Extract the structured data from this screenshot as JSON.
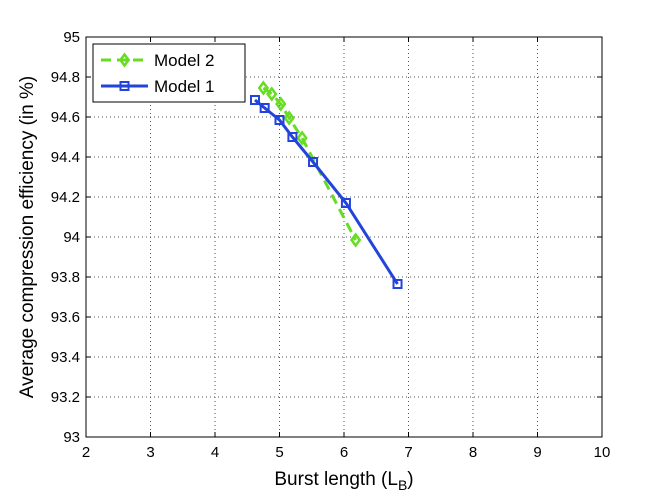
{
  "chart_data": {
    "type": "line",
    "title": "",
    "xlabel": "Burst length (L",
    "xlabel_subscript": "B",
    "xlabel_suffix": ")",
    "ylabel": "Average compression efficiency (in %)",
    "xlim": [
      2,
      10
    ],
    "ylim": [
      93,
      95
    ],
    "xticks": [
      "2",
      "3",
      "4",
      "5",
      "6",
      "7",
      "8",
      "9",
      "10"
    ],
    "yticks": [
      "93",
      "93.2",
      "93.4",
      "93.6",
      "93.8",
      "94",
      "94.2",
      "94.4",
      "94.6",
      "94.8",
      "95"
    ],
    "grid": true,
    "legend_position": "top-left",
    "series": [
      {
        "name": "Model 2",
        "color": "#66dd22",
        "line_style": "dashed",
        "marker": "diamond",
        "x": [
          4.75,
          4.88,
          5.02,
          5.15,
          5.35,
          6.18
        ],
        "y": [
          94.745,
          94.715,
          94.665,
          94.595,
          94.495,
          93.985
        ]
      },
      {
        "name": "Model 1",
        "color": "#2244dd",
        "line_style": "solid",
        "marker": "square",
        "x": [
          4.62,
          4.77,
          5.0,
          5.2,
          5.52,
          6.03,
          6.83
        ],
        "y": [
          94.685,
          94.645,
          94.585,
          94.5,
          94.375,
          94.17,
          93.765
        ]
      }
    ]
  }
}
